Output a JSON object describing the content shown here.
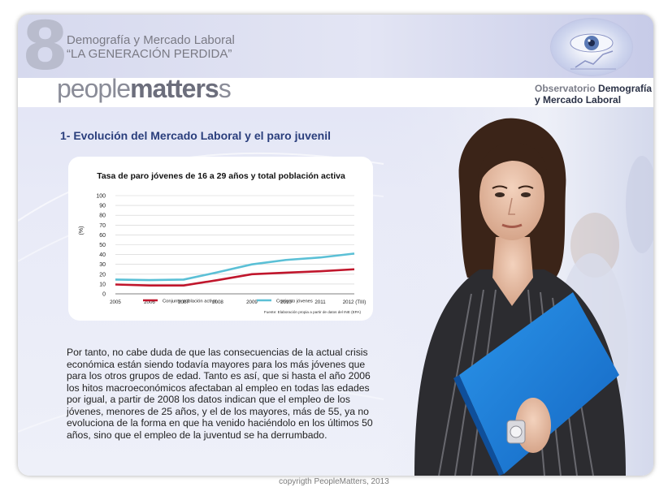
{
  "header": {
    "number": "8",
    "title": "Demografía y Mercado Laboral",
    "subtitle": "“LA GENERACIÓN PERDIDA”",
    "logo_light": "people",
    "logo_bold": "matters",
    "logo_tail": "s",
    "observatorio_prefix": "Observatorio",
    "observatorio_bold1": "Demografía",
    "observatorio_line2": "y Mercado Laboral"
  },
  "section": {
    "title": "1- Evolución del Mercado Laboral y el paro juvenil"
  },
  "chart_data": {
    "type": "line",
    "title": "Tasa de paro jóvenes de 16 a 29 años y total población activa",
    "ylabel": "(%)",
    "xlabel": "",
    "categories": [
      "2005",
      "2006",
      "2007",
      "2008",
      "2009",
      "2010",
      "2011",
      "2012 (TIII)"
    ],
    "ylim": [
      0,
      100
    ],
    "yticks": [
      0,
      10,
      20,
      30,
      40,
      50,
      60,
      70,
      80,
      90,
      100
    ],
    "grid": true,
    "series": [
      {
        "name": "Conjunto población activa",
        "color": "#c0162c",
        "values": [
          9.5,
          8.5,
          8.5,
          14,
          20,
          21.5,
          23,
          25
        ]
      },
      {
        "name": "Conjunto jóvenes",
        "color": "#5bc0d6",
        "values": [
          14.5,
          14,
          14.5,
          22,
          30,
          34.5,
          37,
          41
        ]
      }
    ],
    "legend_position": "bottom",
    "source": "Fuente: Elaboración propia a partir de datos del INE (EPA)"
  },
  "body": {
    "paragraph": "Por tanto, no cabe duda de que las consecuencias de la actual crisis económica están siendo todavía mayores para los más jóvenes que para los otros grupos de edad. Tanto es así, que si hasta el año 2006 los hitos macroeconómicos afectaban al empleo en todas las edades por igual, a partir de 2008 los datos indican que el empleo de los jóvenes, menores de 25 años, y el de los mayores, más de 55, ya no evoluciona de la forma en que ha venido haciéndolo en los últimos 50 años, sino que el empleo de la juventud se ha derrumbado."
  },
  "footer": {
    "copyright": "copyrigth PeopleMatters, 2013"
  },
  "colors": {
    "accent_blue": "#2a3e7c",
    "folder_blue": "#1e7fd6"
  }
}
